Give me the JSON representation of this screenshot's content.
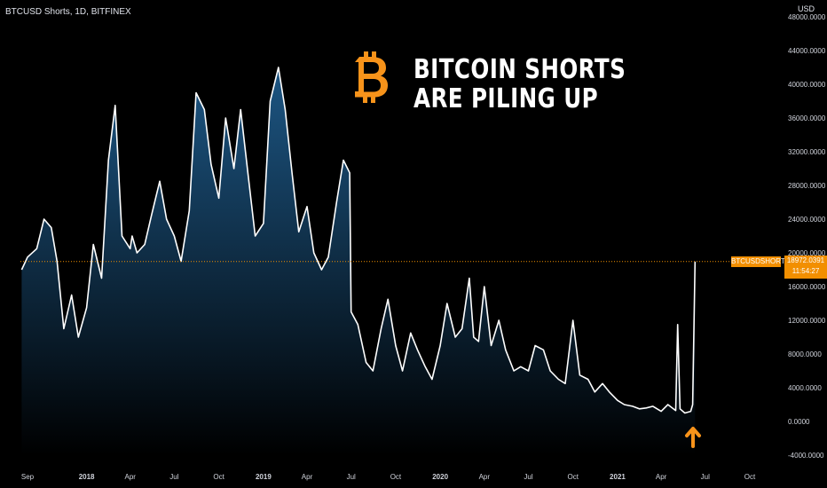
{
  "header": {
    "symbol": "BTCUSD Shorts, 1D, BITFINEX",
    "currency": "USD"
  },
  "annotation": {
    "line1": "BITCOIN SHORTS",
    "line2": "ARE PILING UP"
  },
  "icons": {
    "logo": "bitcoin-logo-icon",
    "arrow": "arrow-up-icon",
    "logo_color": "#f7931a",
    "arrow_color": "#f7931a"
  },
  "price_label": {
    "name": "BTCUSDSHORTS",
    "value": "18972.0391",
    "countdown": "11:54:27"
  },
  "chart_data": {
    "type": "area",
    "x_ticks": [
      "Sep",
      "2018",
      "Apr",
      "Jul",
      "Oct",
      "2019",
      "Apr",
      "Jul",
      "Oct",
      "2020",
      "Apr",
      "Jul",
      "Oct",
      "2021",
      "Apr",
      "Jul",
      "Oct"
    ],
    "y_ticks": [
      "48000.0000",
      "44000.0000",
      "40000.0000",
      "36000.0000",
      "32000.0000",
      "28000.0000",
      "24000.0000",
      "20000.0000",
      "16000.0000",
      "12000.0000",
      "8000.0000",
      "4000.0000",
      "0.0000",
      "-4000.0000"
    ],
    "ylim": [
      -5000,
      49000
    ],
    "grid": false,
    "line_color": "#ffffff",
    "fill_top_color": "#1e5a8a",
    "fill_bottom_color": "#000000",
    "last_value": 18972.0391,
    "series": [
      {
        "x": [
          "2017-08-20",
          "2017-09-01",
          "2017-09-20",
          "2017-10-05",
          "2017-10-20",
          "2017-11-01",
          "2017-11-15",
          "2017-12-01",
          "2017-12-15",
          "2018-01-01",
          "2018-01-15",
          "2018-02-01",
          "2018-02-15",
          "2018-03-01",
          "2018-03-15",
          "2018-04-01",
          "2018-04-05",
          "2018-04-15",
          "2018-05-01",
          "2018-05-15",
          "2018-06-01",
          "2018-06-15",
          "2018-07-01",
          "2018-07-15",
          "2018-08-01",
          "2018-08-15",
          "2018-09-01",
          "2018-09-15",
          "2018-10-01",
          "2018-10-15",
          "2018-11-01",
          "2018-11-15",
          "2018-12-01",
          "2018-12-15",
          "2019-01-01",
          "2019-01-15",
          "2019-02-01",
          "2019-02-15",
          "2019-03-01",
          "2019-03-15",
          "2019-04-01",
          "2019-04-15",
          "2019-05-01",
          "2019-05-15",
          "2019-06-01",
          "2019-06-15",
          "2019-06-28",
          "2019-07-01",
          "2019-07-15",
          "2019-08-01",
          "2019-08-15",
          "2019-09-01",
          "2019-09-15",
          "2019-10-01",
          "2019-10-15",
          "2019-11-01",
          "2019-11-15",
          "2019-12-01",
          "2019-12-15",
          "2020-01-01",
          "2020-01-15",
          "2020-02-01",
          "2020-02-15",
          "2020-03-01",
          "2020-03-10",
          "2020-03-20",
          "2020-04-01",
          "2020-04-15",
          "2020-05-01",
          "2020-05-15",
          "2020-06-01",
          "2020-06-15",
          "2020-07-01",
          "2020-07-15",
          "2020-08-01",
          "2020-08-15",
          "2020-09-01",
          "2020-09-15",
          "2020-10-01",
          "2020-10-15",
          "2020-11-01",
          "2020-11-15",
          "2020-12-01",
          "2020-12-15",
          "2021-01-01",
          "2021-01-15",
          "2021-02-01",
          "2021-02-15",
          "2021-03-01",
          "2021-03-15",
          "2021-04-01",
          "2021-04-15",
          "2021-05-01",
          "2021-05-05",
          "2021-05-10",
          "2021-05-20",
          "2021-06-01",
          "2021-06-05",
          "2021-06-10"
        ],
        "values": [
          18000,
          19500,
          20500,
          24000,
          23000,
          19000,
          11000,
          15000,
          10000,
          13500,
          21000,
          17000,
          31000,
          37500,
          22000,
          20500,
          22000,
          20000,
          21000,
          24500,
          28500,
          24000,
          22000,
          19000,
          25000,
          39000,
          37000,
          30500,
          26500,
          36000,
          30000,
          37000,
          29000,
          22000,
          23500,
          38000,
          42000,
          37000,
          29500,
          22500,
          25500,
          20000,
          18000,
          19500,
          26000,
          31000,
          29500,
          13000,
          11500,
          7000,
          6000,
          11000,
          14500,
          9000,
          6000,
          10500,
          8500,
          6500,
          5000,
          9000,
          14000,
          10000,
          11000,
          17000,
          10000,
          9500,
          16000,
          9000,
          12000,
          8500,
          6000,
          6500,
          6000,
          9000,
          8500,
          6000,
          5000,
          4500,
          12000,
          5500,
          5000,
          3500,
          4500,
          3500,
          2500,
          2000,
          1800,
          1500,
          1600,
          1800,
          1200,
          2000,
          1300,
          11500,
          1500,
          1000,
          1200,
          2000,
          18972
        ]
      }
    ]
  }
}
